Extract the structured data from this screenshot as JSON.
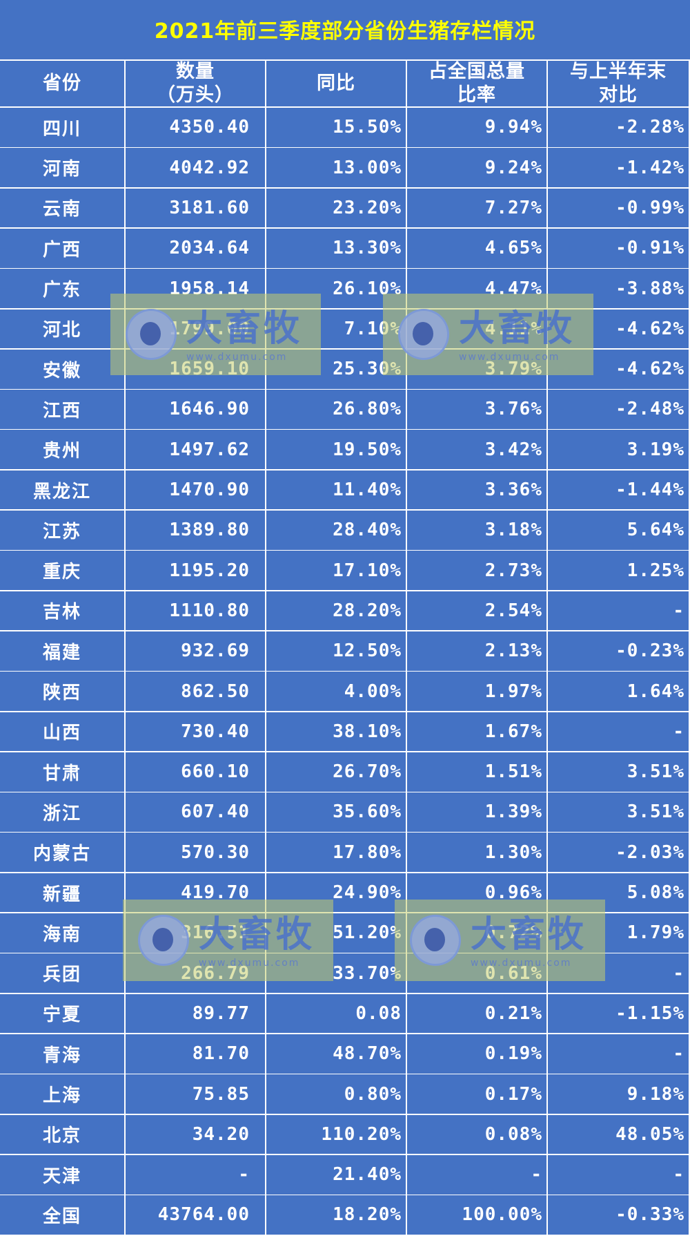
{
  "chart_data": {
    "type": "table",
    "title": "2021年前三季度部分省份生猪存栏情况",
    "columns": [
      [
        "省份"
      ],
      [
        "数量",
        "（万头）"
      ],
      [
        "同比"
      ],
      [
        "占全国总量",
        "比率"
      ],
      [
        "与上半年末",
        "对比"
      ]
    ],
    "rows": [
      [
        "四川",
        "4350.40",
        "15.50%",
        "9.94%",
        "-2.28%"
      ],
      [
        "河南",
        "4042.92",
        "13.00%",
        "9.24%",
        "-1.42%"
      ],
      [
        "云南",
        "3181.60",
        "23.20%",
        "7.27%",
        "-0.99%"
      ],
      [
        "广西",
        "2034.64",
        "13.30%",
        "4.65%",
        "-0.91%"
      ],
      [
        "广东",
        "1958.14",
        "26.10%",
        "4.47%",
        "-3.88%"
      ],
      [
        "河北",
        "1799.00",
        "7.10%",
        "4.11%",
        "-4.62%"
      ],
      [
        "安徽",
        "1659.10",
        "25.30%",
        "3.79%",
        "-4.62%"
      ],
      [
        "江西",
        "1646.90",
        "26.80%",
        "3.76%",
        "-2.48%"
      ],
      [
        "贵州",
        "1497.62",
        "19.50%",
        "3.42%",
        "3.19%"
      ],
      [
        "黑龙江",
        "1470.90",
        "11.40%",
        "3.36%",
        "-1.44%"
      ],
      [
        "江苏",
        "1389.80",
        "28.40%",
        "3.18%",
        "5.64%"
      ],
      [
        "重庆",
        "1195.20",
        "17.10%",
        "2.73%",
        "1.25%"
      ],
      [
        "吉林",
        "1110.80",
        "28.20%",
        "2.54%",
        "-"
      ],
      [
        "福建",
        "932.69",
        "12.50%",
        "2.13%",
        "-0.23%"
      ],
      [
        "陕西",
        "862.50",
        "4.00%",
        "1.97%",
        "1.64%"
      ],
      [
        "山西",
        "730.40",
        "38.10%",
        "1.67%",
        "-"
      ],
      [
        "甘肃",
        "660.10",
        "26.70%",
        "1.51%",
        "3.51%"
      ],
      [
        "浙江",
        "607.40",
        "35.60%",
        "1.39%",
        "3.51%"
      ],
      [
        "内蒙古",
        "570.30",
        "17.80%",
        "1.30%",
        "-2.03%"
      ],
      [
        "新疆",
        "419.70",
        "24.90%",
        "0.96%",
        "5.08%"
      ],
      [
        "海南",
        "316.51",
        "51.20%",
        "0.72%",
        "1.79%"
      ],
      [
        "兵团",
        "266.79",
        "33.70%",
        "0.61%",
        "-"
      ],
      [
        "宁夏",
        "89.77",
        "0.08",
        "0.21%",
        "-1.15%"
      ],
      [
        "青海",
        "81.70",
        "48.70%",
        "0.19%",
        "-"
      ],
      [
        "上海",
        "75.85",
        "0.80%",
        "0.17%",
        "9.18%"
      ],
      [
        "北京",
        "34.20",
        "110.20%",
        "0.08%",
        "48.05%"
      ],
      [
        "天津",
        "-",
        "21.40%",
        "-",
        "-"
      ],
      [
        "全国",
        "43764.00",
        "18.20%",
        "100.00%",
        "-0.33%"
      ]
    ]
  },
  "watermark": {
    "text": "大畜牧",
    "url": "www.dxumu.com"
  },
  "colors": {
    "table_bg": "#4472C4",
    "title_text": "#FFFF00",
    "cell_text": "#FFFFFF",
    "grid_line": "#FFFFFF"
  }
}
